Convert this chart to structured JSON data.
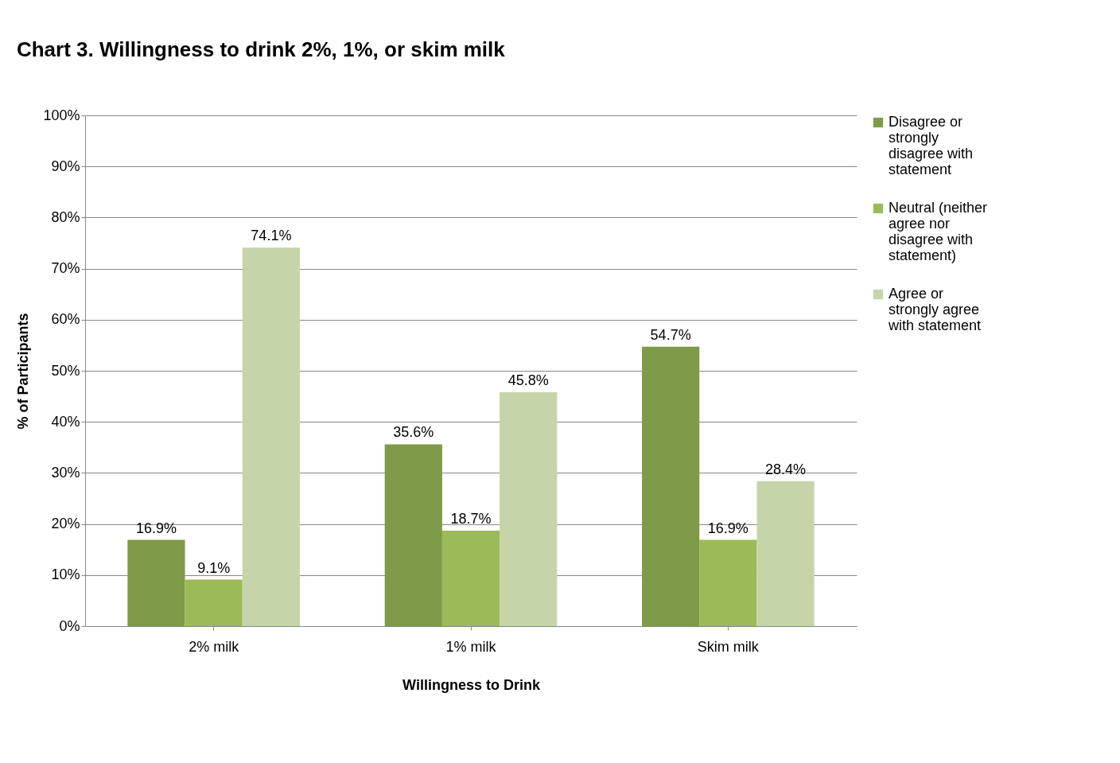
{
  "chart_data": {
    "type": "bar",
    "title": "Chart 3.  Willingness to drink 2%, 1%, or skim milk",
    "xlabel": "Willingness to Drink",
    "ylabel": "% of Participants",
    "categories": [
      "2% milk",
      "1% milk",
      "Skim milk"
    ],
    "series": [
      {
        "name": "Disagree or strongly disagree with statement",
        "color": "#7f9a48",
        "values": [
          16.9,
          35.6,
          54.7
        ],
        "value_labels": [
          "16.9%",
          "35.6%",
          "54.7%"
        ]
      },
      {
        "name": "Neutral (neither agree nor disagree with statement)",
        "color": "#9bbb59",
        "values": [
          9.1,
          18.7,
          16.9
        ],
        "value_labels": [
          "9.1%",
          "18.7%",
          "16.9%"
        ]
      },
      {
        "name": "Agree or strongly agree with statement",
        "color": "#c6d5a9",
        "values": [
          74.1,
          45.8,
          28.4
        ],
        "value_labels": [
          "74.1%",
          "45.8%",
          "28.4%"
        ]
      }
    ],
    "ylim": [
      0,
      100
    ],
    "yticks": [
      {
        "value": 0,
        "label": "0%"
      },
      {
        "value": 10,
        "label": "10%"
      },
      {
        "value": 20,
        "label": "20%"
      },
      {
        "value": 30,
        "label": "30%"
      },
      {
        "value": 40,
        "label": "40%"
      },
      {
        "value": 50,
        "label": "50%"
      },
      {
        "value": 60,
        "label": "60%"
      },
      {
        "value": 70,
        "label": "70%"
      },
      {
        "value": 80,
        "label": "80%"
      },
      {
        "value": 90,
        "label": "90%"
      },
      {
        "value": 100,
        "label": "100%"
      }
    ],
    "grid": "y",
    "legend": "right"
  }
}
